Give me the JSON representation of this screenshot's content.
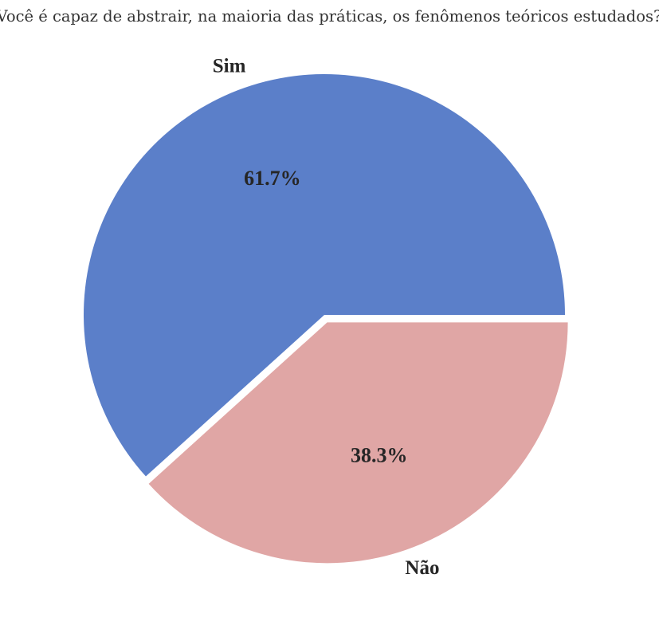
{
  "chart_data": {
    "type": "pie",
    "title": "Você é capaz de abstrair, na maioria das práticas, os fenômenos teóricos estudados?",
    "categories": [
      "Sim",
      "Não"
    ],
    "values": [
      61.7,
      38.3
    ],
    "value_labels": [
      "61.7%",
      "38.3%"
    ],
    "colors": [
      "#5b7fc9",
      "#e0a6a5"
    ],
    "exploded": [
      false,
      true
    ],
    "start": "3 o'clock",
    "direction": "counterclockwise"
  }
}
